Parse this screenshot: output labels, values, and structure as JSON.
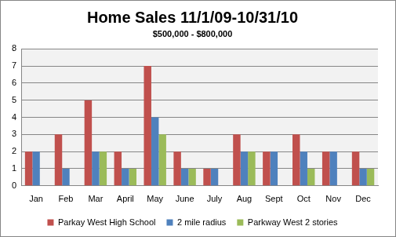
{
  "chart_data": {
    "type": "bar",
    "title": "Home Sales 11/1/09-10/31/10",
    "subtitle": "$500,000 - $800,000",
    "categories": [
      "Jan",
      "Feb",
      "Mar",
      "April",
      "May",
      "June",
      "July",
      "Aug",
      "Sept",
      "Oct",
      "Nov",
      "Dec"
    ],
    "series": [
      {
        "name": "Parkay West High School",
        "color": "#c0504d",
        "values": [
          2,
          3,
          5,
          2,
          7,
          2,
          1,
          3,
          2,
          3,
          2,
          2
        ]
      },
      {
        "name": "2 mile radius",
        "color": "#4f81bd",
        "values": [
          2,
          1,
          2,
          1,
          4,
          1,
          1,
          2,
          2,
          2,
          2,
          1
        ]
      },
      {
        "name": "Parkway West 2 stories",
        "color": "#9bbb59",
        "values": [
          0,
          0,
          2,
          1,
          3,
          1,
          0,
          2,
          0,
          1,
          0,
          1
        ]
      }
    ],
    "ylim": [
      0,
      8
    ],
    "yticks": [
      0,
      1,
      2,
      3,
      4,
      5,
      6,
      7,
      8
    ],
    "grid": true,
    "legend": "bottom"
  }
}
